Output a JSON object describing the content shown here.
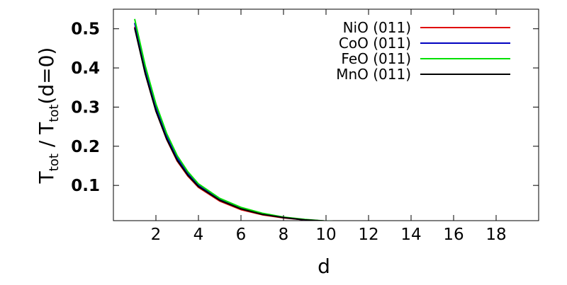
{
  "chart_data": {
    "type": "line",
    "title": "",
    "xlabel": "d",
    "ylabel": {
      "main": "T",
      "sub1": "tot",
      "middle": " / T",
      "sub2": "tot",
      "suffix": "(d=0)"
    },
    "xlim": [
      0,
      20
    ],
    "ylim": [
      0.01,
      0.55
    ],
    "xticks": [
      "2",
      "4",
      "6",
      "8",
      "10",
      "12",
      "14",
      "16",
      "18"
    ],
    "yticks": [
      "0.1",
      "0.2",
      "0.3",
      "0.4",
      "0.5"
    ],
    "grid": false,
    "legend_position": "top-right",
    "series": [
      {
        "name": "NiO (011)",
        "color": "#e00000",
        "x": [
          1,
          1.5,
          2,
          2.5,
          3,
          3.5,
          4,
          5,
          6,
          7,
          8,
          9,
          10,
          11,
          12,
          13,
          14,
          15,
          16,
          17,
          18,
          19,
          20
        ],
        "y": [
          0.505,
          0.385,
          0.29,
          0.218,
          0.162,
          0.124,
          0.095,
          0.06,
          0.038,
          0.025,
          0.017,
          0.012,
          0.009,
          0.007,
          0.005,
          0.003,
          0.002,
          0.001,
          0.0008,
          0.0006,
          0.0004,
          0.0003,
          0.0002
        ]
      },
      {
        "name": "CoO (011)",
        "color": "#0000c0",
        "x": [
          1,
          1.5,
          2,
          2.5,
          3,
          3.5,
          4,
          5,
          6,
          7,
          8,
          9,
          10,
          11,
          12,
          13,
          14,
          15,
          16,
          17,
          18,
          19,
          20
        ],
        "y": [
          0.515,
          0.395,
          0.3,
          0.226,
          0.17,
          0.13,
          0.1,
          0.064,
          0.041,
          0.027,
          0.018,
          0.012,
          0.009,
          0.007,
          0.005,
          0.003,
          0.002,
          0.001,
          0.0008,
          0.0006,
          0.0004,
          0.0003,
          0.0002
        ]
      },
      {
        "name": "FeO (011)",
        "color": "#00e000",
        "x": [
          1,
          1.5,
          2,
          2.5,
          3,
          3.5,
          4,
          5,
          6,
          7,
          8,
          9,
          10,
          11,
          12,
          13,
          14,
          15,
          16,
          17,
          18,
          19,
          20
        ],
        "y": [
          0.525,
          0.405,
          0.308,
          0.233,
          0.176,
          0.135,
          0.104,
          0.067,
          0.044,
          0.029,
          0.019,
          0.013,
          0.009,
          0.007,
          0.005,
          0.003,
          0.002,
          0.001,
          0.0008,
          0.0006,
          0.0004,
          0.0003,
          0.0002
        ]
      },
      {
        "name": "MnO (011)",
        "color": "#000000",
        "x": [
          1,
          1.5,
          2,
          2.5,
          3,
          3.5,
          4,
          5,
          6,
          7,
          8,
          9,
          10,
          11,
          12,
          13,
          14,
          15,
          16,
          17,
          18,
          19,
          20
        ],
        "y": [
          0.502,
          0.385,
          0.29,
          0.219,
          0.164,
          0.126,
          0.097,
          0.062,
          0.04,
          0.026,
          0.018,
          0.012,
          0.009,
          0.007,
          0.005,
          0.003,
          0.002,
          0.001,
          0.0008,
          0.0006,
          0.0004,
          0.0003,
          0.0002
        ]
      }
    ]
  }
}
